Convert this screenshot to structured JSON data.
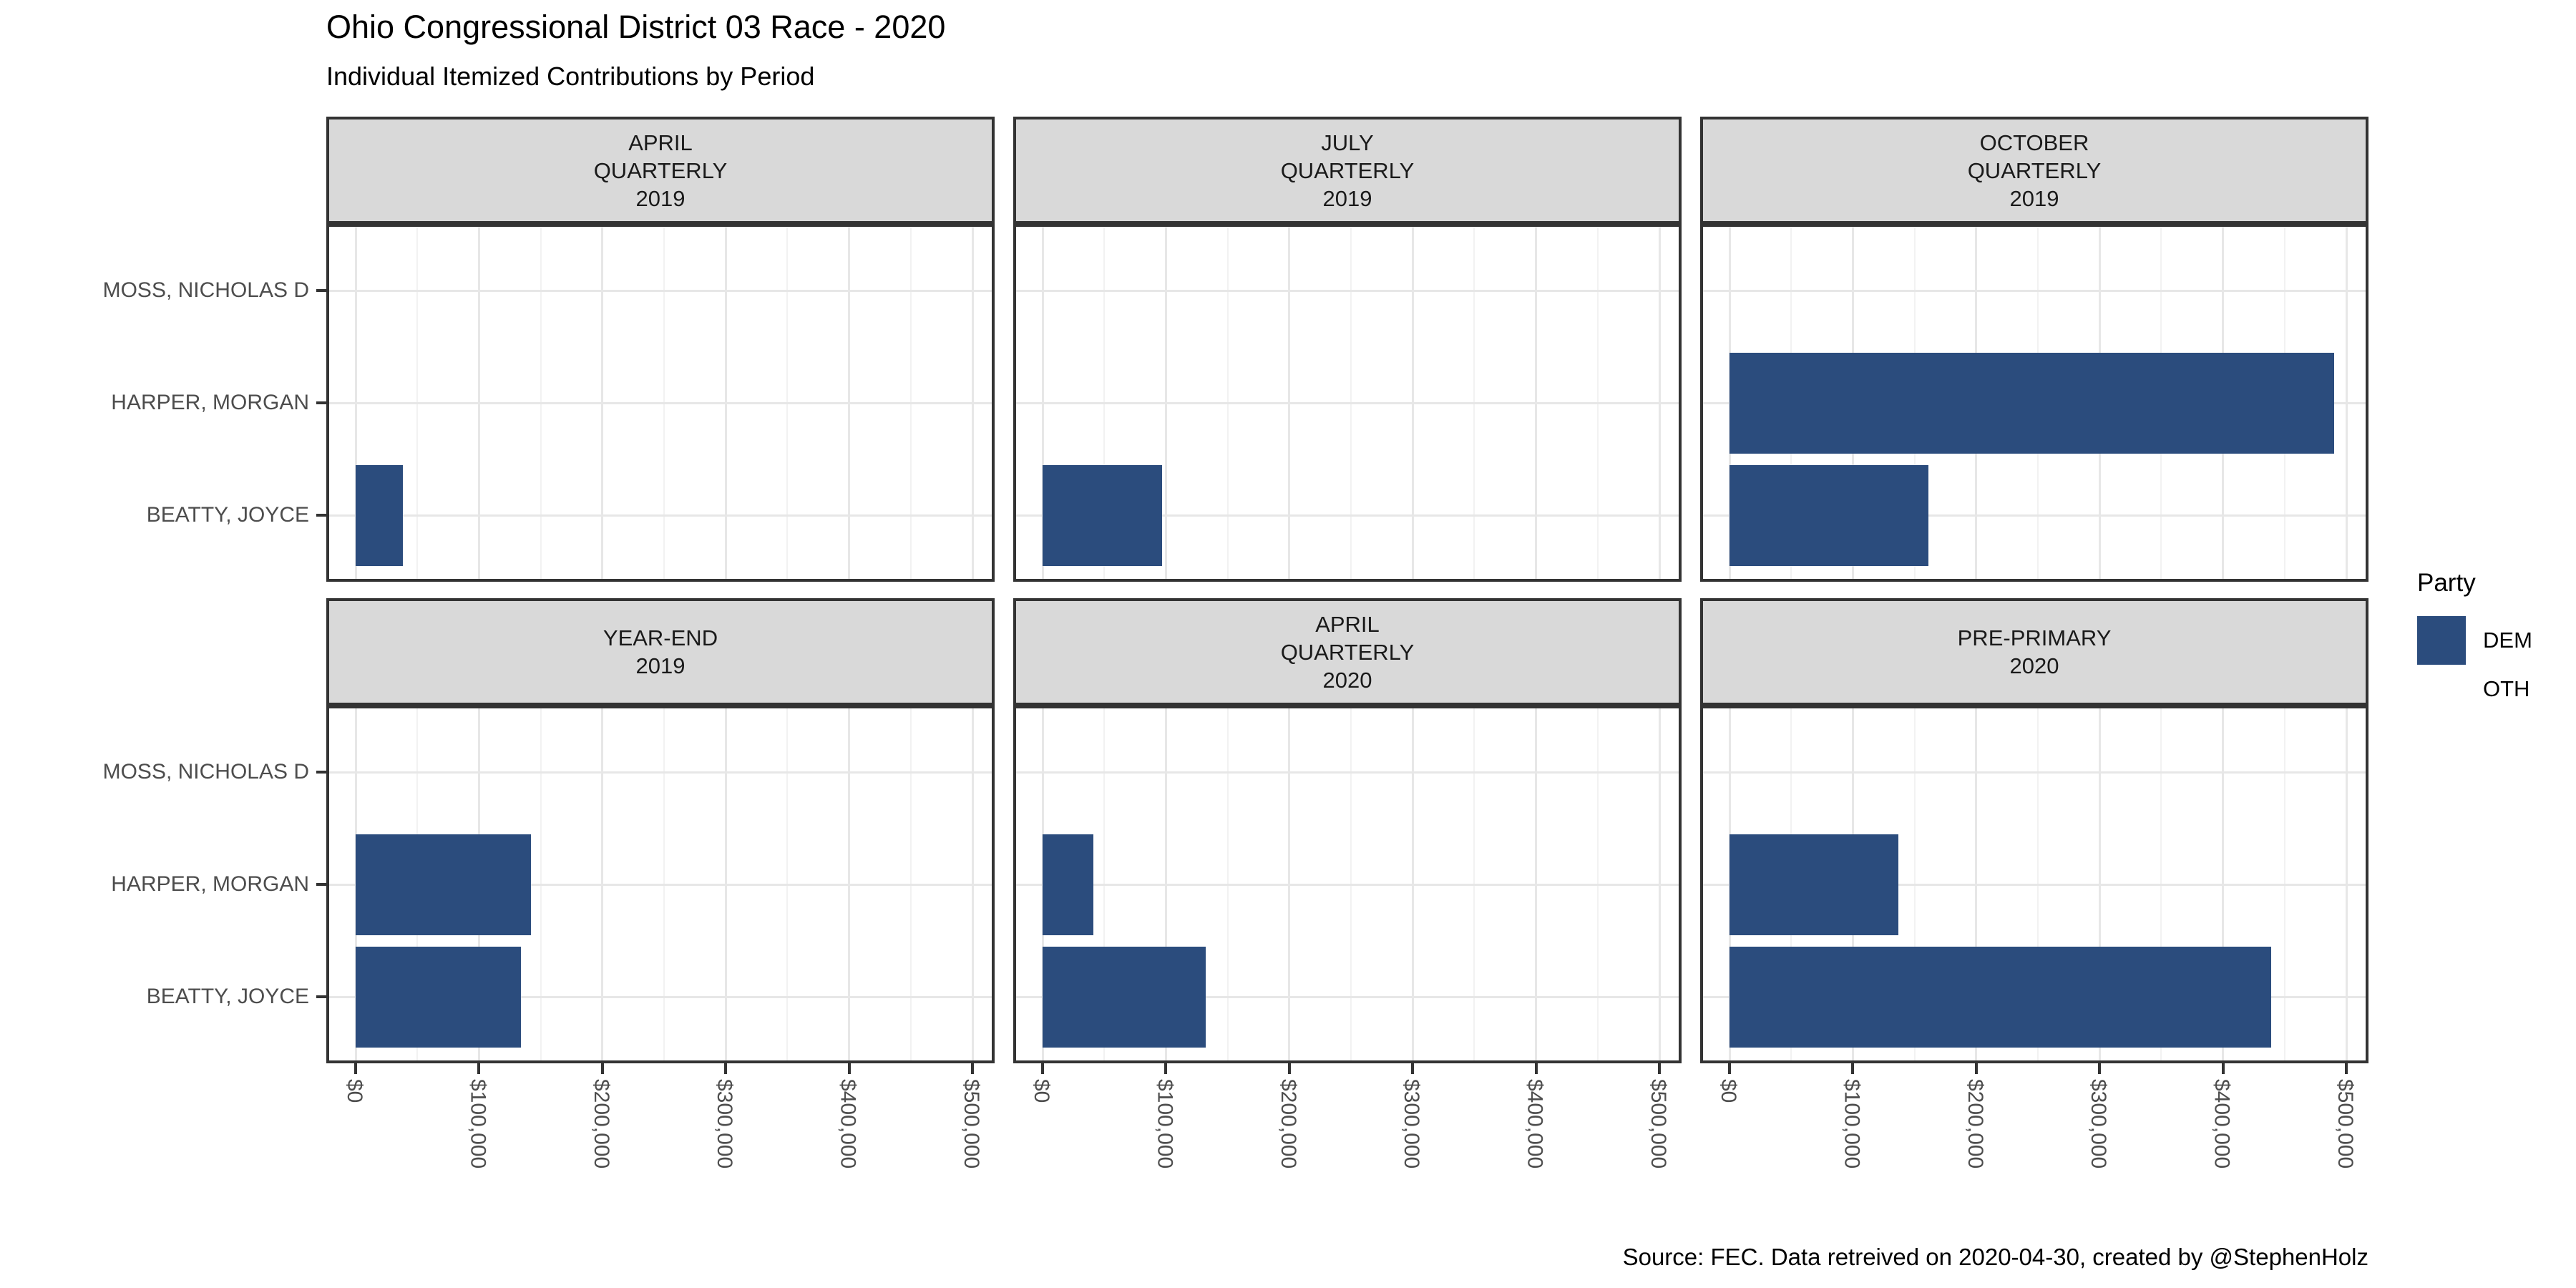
{
  "title": "Ohio Congressional District 03 Race - 2020",
  "subtitle": "Individual Itemized Contributions by Period",
  "caption": "Source: FEC. Data retreived on 2020-04-30, created by @StephenHolz",
  "legend": {
    "title": "Party",
    "items": [
      {
        "label": "DEM",
        "color": "#2B4C7D"
      },
      {
        "label": "OTH",
        "color": "#FFFFFF"
      }
    ]
  },
  "colors": {
    "bar_dem": "#2B4C7D",
    "strip_background": "#D9D9D9",
    "panel_border": "#333333",
    "grid_major": "#E7E7E7",
    "grid_minor": "#F2F2F2",
    "axis_text": "#4D4D4D"
  },
  "chart_data": {
    "type": "bar",
    "orientation": "horizontal",
    "title": "Ohio Congressional District 03 Race - 2020",
    "subtitle": "Individual Itemized Contributions by Period",
    "categories": [
      "MOSS, NICHOLAS D",
      "HARPER, MORGAN",
      "BEATTY, JOYCE"
    ],
    "x_tick_labels": [
      "$0",
      "$100,000",
      "$200,000",
      "$300,000",
      "$400,000",
      "$500,000"
    ],
    "x_tick_values": [
      0,
      100000,
      200000,
      300000,
      400000,
      500000
    ],
    "xlim": [
      0,
      500000
    ],
    "grid": {
      "major_every": 100000,
      "minor_every": 50000,
      "horizontal": "category-centers"
    },
    "legend_position": "right",
    "facet_layout": {
      "rows": 2,
      "cols": 3
    },
    "facets": [
      {
        "label": "APRIL QUARTERLY 2019",
        "label_lines": [
          "APRIL",
          "QUARTERLY",
          "2019"
        ],
        "party": "DEM",
        "values": [
          0,
          0,
          38000
        ]
      },
      {
        "label": "JULY QUARTERLY 2019",
        "label_lines": [
          "JULY",
          "QUARTERLY",
          "2019"
        ],
        "party": "DEM",
        "values": [
          0,
          0,
          97000
        ]
      },
      {
        "label": "OCTOBER QUARTERLY 2019",
        "label_lines": [
          "OCTOBER",
          "QUARTERLY",
          "2019"
        ],
        "party": "DEM",
        "values": [
          0,
          490000,
          161000
        ]
      },
      {
        "label": "YEAR-END 2019",
        "label_lines": [
          "YEAR-END",
          "2019"
        ],
        "party": "DEM",
        "values": [
          0,
          142000,
          134000
        ]
      },
      {
        "label": "APRIL QUARTERLY 2020",
        "label_lines": [
          "APRIL",
          "QUARTERLY",
          "2020"
        ],
        "party": "DEM",
        "values": [
          0,
          41000,
          132000
        ]
      },
      {
        "label": "PRE-PRIMARY 2020",
        "label_lines": [
          "PRE-PRIMARY",
          "2020"
        ],
        "party": "DEM",
        "values": [
          0,
          137000,
          439000
        ]
      }
    ]
  }
}
